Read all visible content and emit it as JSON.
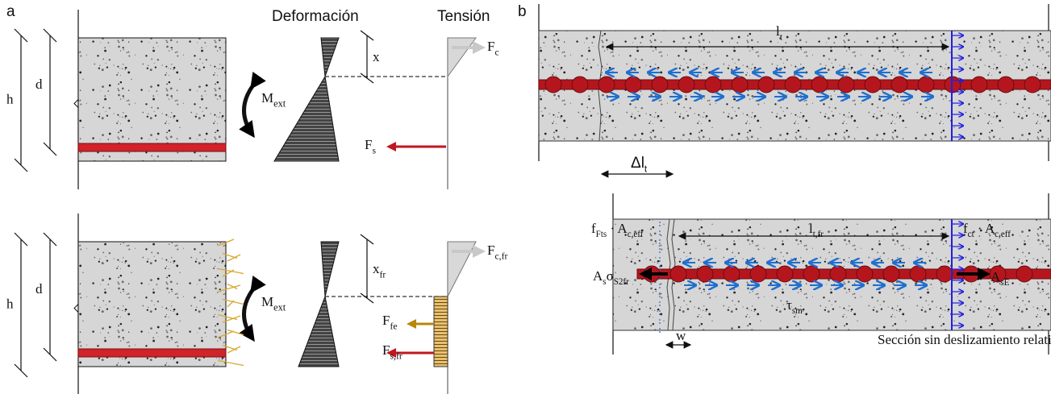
{
  "panel_a": {
    "label": "a",
    "strain_title": "Deformación",
    "stress_title": "Tensión",
    "top": {
      "h": "h",
      "d": "d",
      "depth": [
        {
          "main": "x",
          "sub": ""
        }
      ],
      "moment": [
        {
          "main": "M",
          "sub": "ext"
        }
      ],
      "compression": [
        {
          "main": "F",
          "sub": "c"
        }
      ],
      "steel": [
        {
          "main": "F",
          "sub": "s"
        }
      ]
    },
    "bottom": {
      "h": "h",
      "d": "d",
      "depth": [
        {
          "main": "x",
          "sub": "fr"
        }
      ],
      "moment": [
        {
          "main": "M",
          "sub": "ext"
        }
      ],
      "compression": [
        {
          "main": "F",
          "sub": "c,fr"
        }
      ],
      "fibers": [
        {
          "main": "F",
          "sub": "fe"
        }
      ],
      "steel": [
        {
          "main": "F",
          "sub": "s,fr"
        }
      ]
    }
  },
  "panel_b": {
    "label": "b",
    "top": {
      "transfer_length": [
        {
          "main": "l",
          "sub": "t"
        }
      ],
      "delta": [
        {
          "main": "Δl",
          "sub": "t"
        }
      ]
    },
    "bottom": {
      "transfer_length": [
        {
          "main": "l",
          "sub": "t,fr"
        }
      ],
      "fiber_force": [
        {
          "main": "f",
          "sub": "Fts"
        },
        {
          "main": " · A",
          "sub": "c,eff"
        }
      ],
      "concrete_force": [
        {
          "main": "f",
          "sub": "ct"
        },
        {
          "main": " · A",
          "sub": "c,eff"
        }
      ],
      "steel_crack": [
        {
          "main": "A",
          "sub": "s"
        },
        {
          "main": "σ",
          "sub": "S2fr"
        }
      ],
      "steel_end": [
        {
          "main": "A",
          "sub": "sE"
        }
      ],
      "bond": [
        {
          "main": "τ",
          "sub": "sm"
        }
      ],
      "crack_width": [
        {
          "main": "w",
          "sub": ""
        }
      ],
      "note": "Sección sin deslizamiento relativo"
    }
  }
}
